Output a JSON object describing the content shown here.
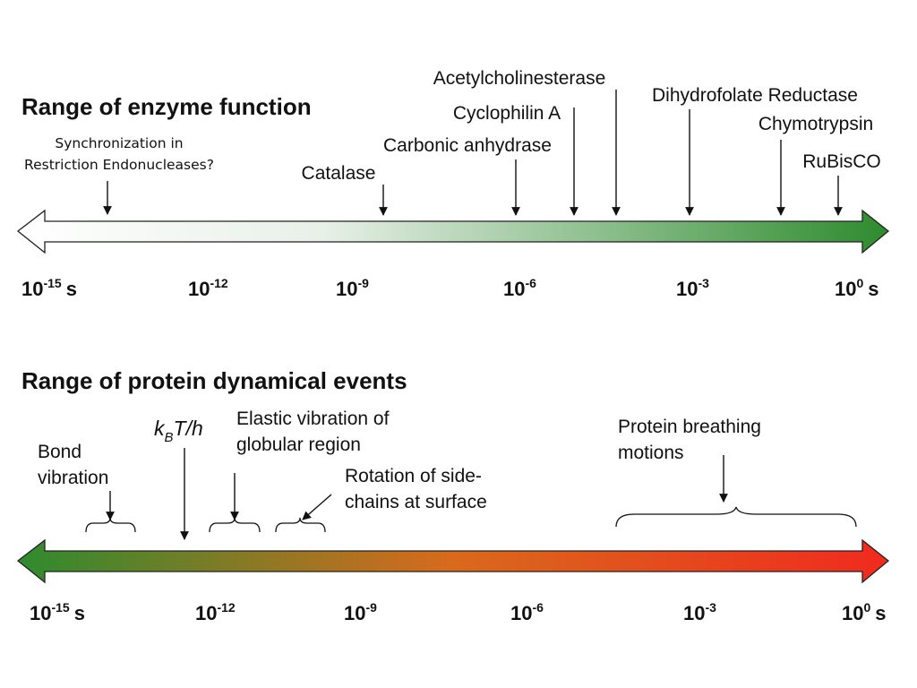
{
  "top": {
    "title": "Range of enzyme function",
    "gradient": {
      "from": "#ffffff",
      "to": "#2e8b2e"
    },
    "ticks": [
      {
        "base": "10",
        "exp": "-15",
        "unit": "s"
      },
      {
        "base": "10",
        "exp": "-12",
        "unit": ""
      },
      {
        "base": "10",
        "exp": "-9",
        "unit": ""
      },
      {
        "base": "10",
        "exp": "-6",
        "unit": ""
      },
      {
        "base": "10",
        "exp": "-3",
        "unit": ""
      },
      {
        "base": "10",
        "exp": "0",
        "unit": "s"
      }
    ],
    "markers": [
      {
        "name": "synchronization",
        "lines": [
          "Synchronization in",
          "Restriction Endonucleases?"
        ]
      },
      {
        "name": "catalase",
        "lines": [
          "Catalase"
        ]
      },
      {
        "name": "carbonic-anhydrase",
        "lines": [
          "Carbonic anhydrase"
        ]
      },
      {
        "name": "cyclophilin-a",
        "lines": [
          "Cyclophilin A"
        ]
      },
      {
        "name": "acetylcholinesterase",
        "lines": [
          "Acetylcholinesterase"
        ]
      },
      {
        "name": "dihydrofolate-reductase",
        "lines": [
          "Dihydrofolate Reductase"
        ]
      },
      {
        "name": "chymotrypsin",
        "lines": [
          "Chymotrypsin"
        ]
      },
      {
        "name": "rubisco",
        "lines": [
          "RuBisCO"
        ]
      }
    ]
  },
  "bottom": {
    "title": "Range of protein dynamical events",
    "gradient": {
      "from": "#2e8b2e",
      "mid": "#d96a1c",
      "to": "#f02a1e"
    },
    "ticks": [
      {
        "base": "10",
        "exp": "-15",
        "unit": "s"
      },
      {
        "base": "10",
        "exp": "-12",
        "unit": ""
      },
      {
        "base": "10",
        "exp": "-9",
        "unit": ""
      },
      {
        "base": "10",
        "exp": "-6",
        "unit": ""
      },
      {
        "base": "10",
        "exp": "-3",
        "unit": ""
      },
      {
        "base": "10",
        "exp": "0",
        "unit": "s"
      }
    ],
    "events": [
      {
        "name": "bond-vibration",
        "lines": [
          "Bond",
          "vibration"
        ]
      },
      {
        "name": "kbt-h",
        "k": "k",
        "sub": "B",
        "rest": "T/h"
      },
      {
        "name": "elastic-vibration",
        "lines": [
          "Elastic vibration of",
          "globular region"
        ]
      },
      {
        "name": "side-chain-rotation",
        "lines": [
          "Rotation of side-",
          "chains at surface"
        ]
      },
      {
        "name": "protein-breathing",
        "lines": [
          "Protein breathing",
          "motions"
        ]
      }
    ]
  }
}
